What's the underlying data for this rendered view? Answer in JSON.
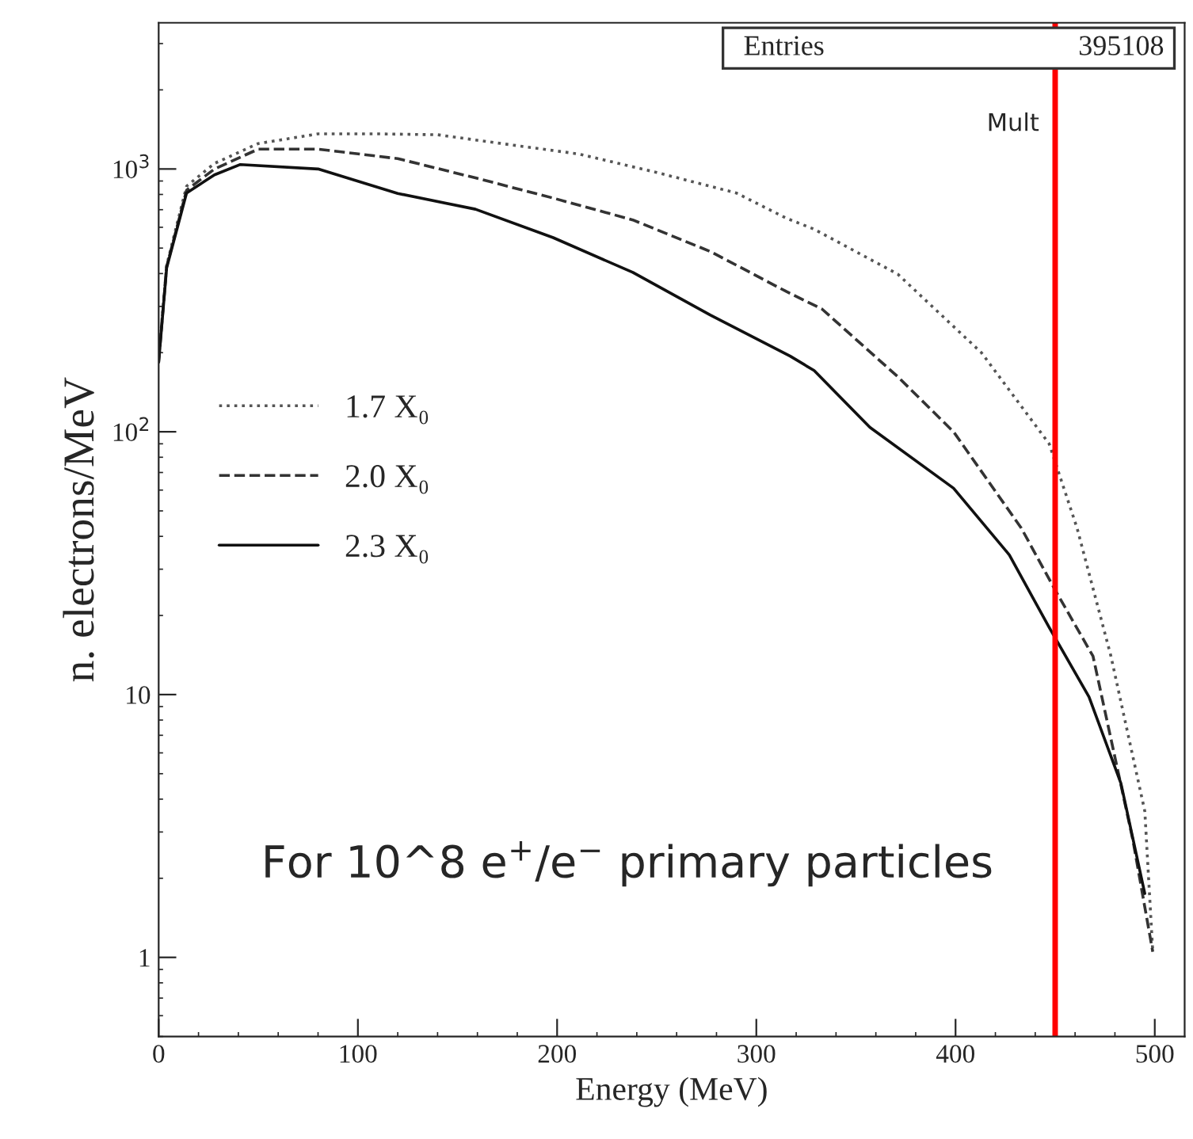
{
  "chart_data": {
    "type": "line",
    "xlabel": "Energy (MeV)",
    "ylabel": "n. electrons/MeV",
    "log": "y",
    "xlim": [
      0,
      515
    ],
    "ylim": [
      0.5,
      3600
    ],
    "xticks": [
      0,
      100,
      200,
      300,
      400,
      500
    ],
    "yticks": [
      1,
      10,
      {
        "value": 100,
        "label": "10$^{2}$"
      },
      {
        "value": 1000,
        "label": "10$^{3}$"
      }
    ],
    "legend": "left",
    "grid": false,
    "series": [
      {
        "name": "1.7 X₀",
        "color": "#555555",
        "line_style": "dotted",
        "x": [
          0,
          4,
          14,
          28,
          50,
          80,
          110,
          140,
          172,
          211,
          250,
          290,
          315,
          329,
          371,
          413,
          447,
          461,
          478,
          495,
          499
        ],
        "values": [
          190,
          430,
          860,
          1050,
          1250,
          1360,
          1360,
          1350,
          1250,
          1140,
          970,
          810,
          650,
          590,
          398,
          200,
          90,
          43,
          14,
          3.6,
          1.05
        ]
      },
      {
        "name": "2.0 X₀",
        "color": "#333333",
        "line_style": "dashed",
        "x": [
          0,
          4,
          14,
          28,
          50,
          80,
          120,
          159,
          198,
          238,
          277,
          315,
          333,
          371,
          399,
          433,
          450,
          469,
          489,
          499
        ],
        "values": [
          185,
          425,
          830,
          1000,
          1190,
          1190,
          1095,
          925,
          775,
          640,
          485,
          342,
          293,
          162,
          100,
          43,
          25,
          14,
          2.8,
          1.05
        ]
      },
      {
        "name": "2.3 X₀",
        "color": "#111111",
        "line_style": "solid",
        "x": [
          0,
          4,
          14,
          28,
          41,
          80,
          120,
          159,
          198,
          238,
          277,
          317,
          329,
          357,
          399,
          427,
          447,
          467,
          483,
          495
        ],
        "values": [
          184,
          420,
          810,
          950,
          1040,
          1000,
          807,
          703,
          548,
          404,
          278,
          194,
          171,
          104,
          61,
          34,
          18,
          9.8,
          4.6,
          1.75
        ]
      }
    ],
    "ref_lines": [
      {
        "axis": "x",
        "value": 450,
        "label": "Mult",
        "color": "#ff0000"
      }
    ],
    "annotations": [
      "Entries",
      "395108",
      "For 10^8 e$^{+}$/e$^{−}$ primary particles"
    ]
  }
}
